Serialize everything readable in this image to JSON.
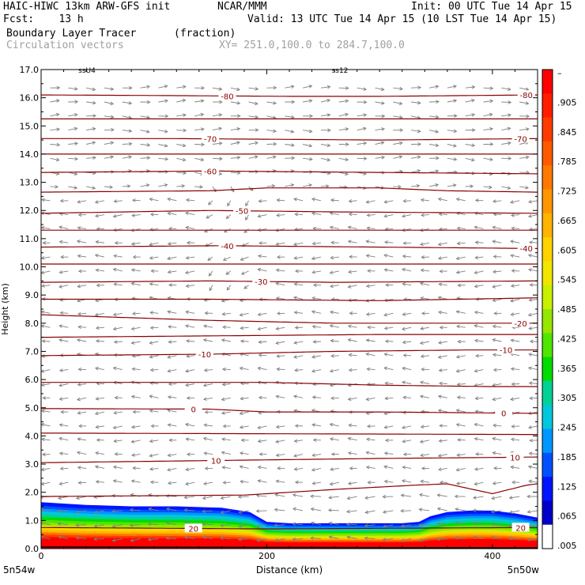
{
  "header": {
    "line1_left": "HAIC-HIWC 13km ARW-GFS init",
    "line1_mid": "NCAR/MMM",
    "line1_right": "Init: 00 UTC Tue 14 Apr 15",
    "line2_left": "Fcst:    13 h",
    "line2_right": "Valid: 13 UTC Tue 14 Apr 15 (10 LST Tue 14 Apr 15)",
    "field_name": "Boundary Layer Tracer",
    "field_units": "(fraction)",
    "vector_name": "Circulation vectors",
    "xy_range": "XY= 251.0,100.0 to 284.7,100.0"
  },
  "chart_data": {
    "type": "heatmap",
    "xlabel": "Distance (km)",
    "ylabel": "Height (km)",
    "xlim": [
      0,
      440
    ],
    "ylim": [
      0,
      17
    ],
    "x_ticks": [
      {
        "value": 0,
        "label": "0"
      },
      {
        "value": 200,
        "label": "200"
      },
      {
        "value": 400,
        "label": "400"
      }
    ],
    "x_end_labels": {
      "left": "5n54w",
      "right": "5n50w"
    },
    "y_ticks": [
      "0.0",
      "1.0",
      "2.0",
      "3.0",
      "4.0",
      "5.0",
      "6.0",
      "7.0",
      "8.0",
      "9.0",
      "10.0",
      "11.0",
      "12.0",
      "13.0",
      "14.0",
      "15.0",
      "16.0",
      "17.0"
    ],
    "colorbar": {
      "labels": [
        "–",
        ".905",
        ".845",
        ".785",
        ".725",
        ".665",
        ".605",
        ".545",
        ".485",
        ".425",
        ".365",
        ".305",
        ".245",
        ".185",
        ".125",
        ".065",
        ".005"
      ],
      "colors": [
        "#ff0000",
        "#ff1e00",
        "#ff3c00",
        "#ff5a00",
        "#ff7800",
        "#ff9600",
        "#ffb400",
        "#ffd200",
        "#f0e600",
        "#c8f000",
        "#96e600",
        "#50e600",
        "#00dc00",
        "#00d296",
        "#00c8dc",
        "#0096ff",
        "#0050ff",
        "#0014ff",
        "#0000c8",
        "#ffffff"
      ]
    },
    "tracer_top_km": [
      [
        0,
        1.65
      ],
      [
        40,
        1.55
      ],
      [
        80,
        1.5
      ],
      [
        120,
        1.5
      ],
      [
        160,
        1.45
      ],
      [
        185,
        1.3
      ],
      [
        200,
        0.95
      ],
      [
        220,
        0.9
      ],
      [
        250,
        0.9
      ],
      [
        280,
        0.9
      ],
      [
        320,
        0.9
      ],
      [
        335,
        0.95
      ],
      [
        345,
        1.15
      ],
      [
        360,
        1.3
      ],
      [
        380,
        1.35
      ],
      [
        400,
        1.35
      ],
      [
        420,
        1.25
      ],
      [
        440,
        1.1
      ]
    ],
    "temperature_contours": [
      {
        "label": "-80",
        "points": [
          [
            0,
            16.1
          ],
          [
            100,
            16.08
          ],
          [
            220,
            16.05
          ],
          [
            300,
            16.05
          ],
          [
            440,
            16.1
          ]
        ],
        "label_x": [
          165,
          430
        ]
      },
      {
        "label": "",
        "points": [
          [
            0,
            15.25
          ],
          [
            440,
            15.25
          ]
        ],
        "label_x": []
      },
      {
        "label": "-70",
        "points": [
          [
            0,
            14.55
          ],
          [
            120,
            14.55
          ],
          [
            300,
            14.5
          ],
          [
            440,
            14.55
          ]
        ],
        "label_x": [
          150,
          425
        ]
      },
      {
        "label": "",
        "points": [
          [
            0,
            14.0
          ],
          [
            440,
            14.0
          ]
        ],
        "label_x": []
      },
      {
        "label": "-60",
        "points": [
          [
            0,
            13.35
          ],
          [
            150,
            13.4
          ],
          [
            300,
            13.35
          ],
          [
            440,
            13.3
          ]
        ],
        "label_x": [
          150
        ]
      },
      {
        "label": "",
        "points": [
          [
            0,
            12.65
          ],
          [
            150,
            12.7
          ],
          [
            200,
            12.8
          ],
          [
            300,
            12.8
          ],
          [
            360,
            12.7
          ],
          [
            440,
            12.65
          ]
        ],
        "label_x": []
      },
      {
        "label": "-50",
        "points": [
          [
            0,
            11.9
          ],
          [
            150,
            12.0
          ],
          [
            260,
            11.95
          ],
          [
            440,
            11.9
          ]
        ],
        "label_x": [
          178
        ]
      },
      {
        "label": "",
        "points": [
          [
            0,
            11.3
          ],
          [
            440,
            11.3
          ]
        ],
        "label_x": []
      },
      {
        "label": "-40",
        "points": [
          [
            0,
            10.7
          ],
          [
            160,
            10.75
          ],
          [
            300,
            10.7
          ],
          [
            440,
            10.65
          ]
        ],
        "label_x": [
          165,
          430
        ]
      },
      {
        "label": "",
        "points": [
          [
            0,
            10.1
          ],
          [
            440,
            10.1
          ]
        ],
        "label_x": []
      },
      {
        "label": "-30",
        "points": [
          [
            0,
            9.45
          ],
          [
            150,
            9.5
          ],
          [
            260,
            9.45
          ],
          [
            440,
            9.5
          ]
        ],
        "label_x": [
          195
        ]
      },
      {
        "label": "",
        "points": [
          [
            0,
            8.85
          ],
          [
            150,
            8.85
          ],
          [
            300,
            8.8
          ],
          [
            440,
            8.9
          ]
        ],
        "label_x": []
      },
      {
        "label": "-20",
        "points": [
          [
            0,
            8.3
          ],
          [
            150,
            8.1
          ],
          [
            260,
            8.0
          ],
          [
            440,
            8.0
          ]
        ],
        "label_x": [
          425
        ]
      },
      {
        "label": "",
        "points": [
          [
            0,
            7.5
          ],
          [
            150,
            7.55
          ],
          [
            300,
            7.6
          ],
          [
            440,
            7.6
          ]
        ],
        "label_x": []
      },
      {
        "label": "-10",
        "points": [
          [
            0,
            6.85
          ],
          [
            150,
            6.9
          ],
          [
            260,
            7.0
          ],
          [
            380,
            7.05
          ],
          [
            440,
            7.05
          ]
        ],
        "label_x": [
          145,
          412
        ]
      },
      {
        "label": "",
        "points": [
          [
            0,
            5.9
          ],
          [
            200,
            5.9
          ],
          [
            300,
            5.8
          ],
          [
            400,
            5.75
          ],
          [
            440,
            5.75
          ]
        ],
        "label_x": []
      },
      {
        "label": "0",
        "points": [
          [
            0,
            4.97
          ],
          [
            150,
            4.95
          ],
          [
            200,
            4.85
          ],
          [
            300,
            4.85
          ],
          [
            440,
            4.8
          ]
        ],
        "label_x": [
          135,
          410
        ]
      },
      {
        "label": "",
        "points": [
          [
            0,
            4.1
          ],
          [
            440,
            4.05
          ]
        ],
        "label_x": []
      },
      {
        "label": "10",
        "points": [
          [
            0,
            3.05
          ],
          [
            200,
            3.15
          ],
          [
            300,
            3.2
          ],
          [
            440,
            3.25
          ]
        ],
        "label_x": [
          155,
          420
        ]
      },
      {
        "label": "",
        "points": [
          [
            0,
            1.85
          ],
          [
            180,
            1.9
          ],
          [
            260,
            2.1
          ],
          [
            330,
            2.25
          ],
          [
            360,
            2.3
          ],
          [
            400,
            1.95
          ],
          [
            430,
            2.25
          ],
          [
            440,
            2.3
          ]
        ],
        "label_x": []
      },
      {
        "label": "20",
        "points": [
          [
            0,
            0.75
          ],
          [
            200,
            0.7
          ],
          [
            440,
            0.75
          ]
        ],
        "label_x": [
          135,
          425
        ]
      }
    ],
    "top_annotations": [
      "ssU4",
      "ss12"
    ]
  }
}
